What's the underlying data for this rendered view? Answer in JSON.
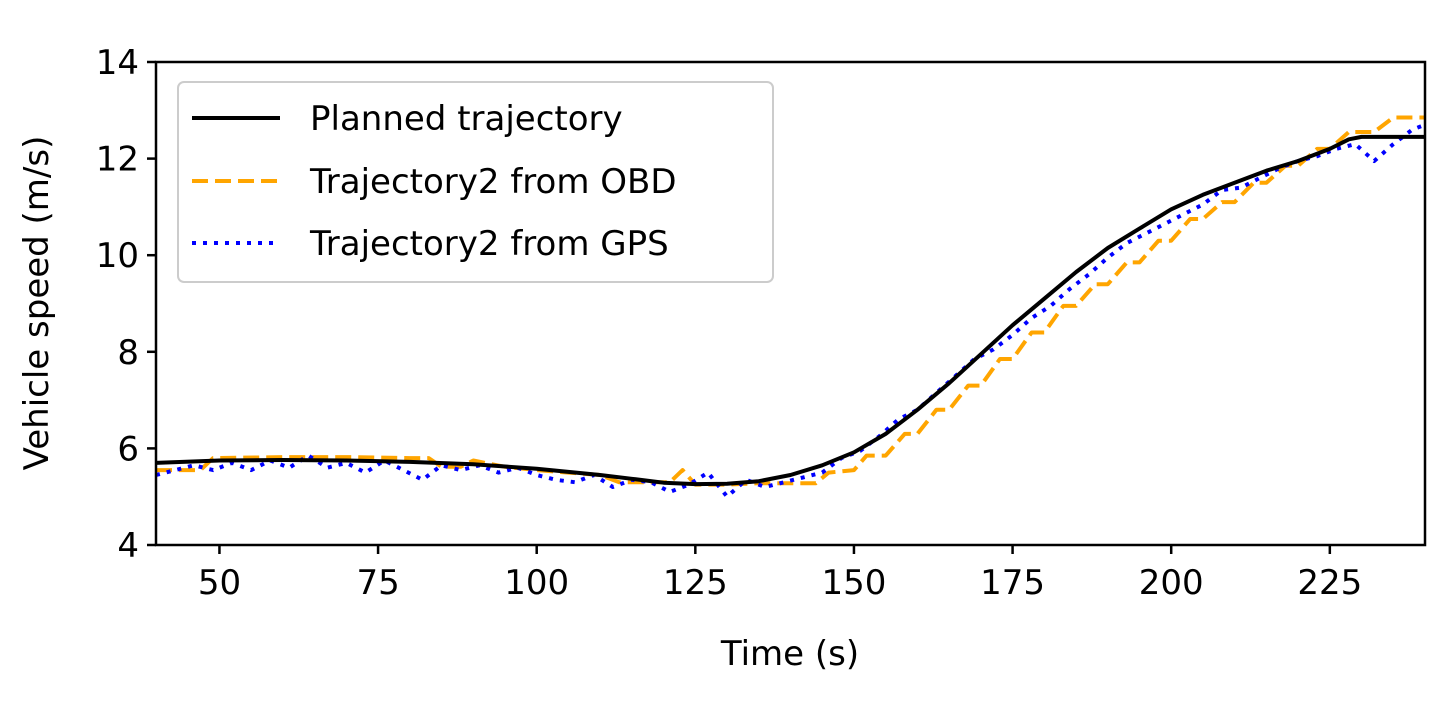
{
  "chart_data": {
    "type": "line",
    "title": "",
    "xlabel": "Time (s)",
    "ylabel": "Vehicle speed (m/s)",
    "xlim": [
      40,
      240
    ],
    "ylim": [
      4,
      14
    ],
    "xticks": [
      50,
      75,
      100,
      125,
      150,
      175,
      200,
      225
    ],
    "yticks": [
      4,
      6,
      8,
      10,
      12,
      14
    ],
    "grid": false,
    "legend_position": "top-left",
    "series": [
      {
        "name": "Planned trajectory",
        "color": "#000000",
        "style": "solid",
        "x": [
          40,
          50,
          60,
          70,
          80,
          90,
          100,
          110,
          115,
          120,
          125,
          130,
          135,
          140,
          145,
          150,
          155,
          160,
          165,
          170,
          175,
          180,
          185,
          190,
          195,
          200,
          205,
          210,
          215,
          220,
          225,
          228,
          230,
          240
        ],
        "y": [
          5.7,
          5.75,
          5.76,
          5.75,
          5.72,
          5.67,
          5.58,
          5.45,
          5.37,
          5.29,
          5.26,
          5.27,
          5.32,
          5.45,
          5.65,
          5.92,
          6.3,
          6.8,
          7.35,
          7.95,
          8.55,
          9.1,
          9.65,
          10.15,
          10.55,
          10.95,
          11.25,
          11.5,
          11.75,
          11.95,
          12.2,
          12.4,
          12.45,
          12.45
        ]
      },
      {
        "name": "Trajectory2 from OBD",
        "color": "#FFA500",
        "style": "dashed",
        "x": [
          40,
          47,
          49,
          60,
          70,
          80,
          83,
          85,
          88,
          90,
          95,
          100,
          105,
          110,
          113,
          118,
          121,
          123,
          125,
          128,
          130,
          135,
          140,
          144,
          146,
          150,
          152,
          155,
          158,
          160,
          163,
          165,
          168,
          170,
          173,
          175,
          178,
          180,
          183,
          185,
          188,
          190,
          193,
          195,
          198,
          200,
          203,
          205,
          208,
          210,
          213,
          215,
          218,
          220,
          223,
          225,
          228,
          232,
          235,
          240
        ],
        "y": [
          5.55,
          5.55,
          5.8,
          5.82,
          5.82,
          5.8,
          5.8,
          5.62,
          5.62,
          5.75,
          5.62,
          5.55,
          5.5,
          5.45,
          5.3,
          5.3,
          5.3,
          5.55,
          5.25,
          5.25,
          5.25,
          5.28,
          5.28,
          5.28,
          5.5,
          5.55,
          5.85,
          5.85,
          6.3,
          6.3,
          6.8,
          6.8,
          7.3,
          7.3,
          7.85,
          7.85,
          8.4,
          8.4,
          8.95,
          8.95,
          9.4,
          9.4,
          9.85,
          9.85,
          10.3,
          10.3,
          10.75,
          10.75,
          11.1,
          11.1,
          11.5,
          11.5,
          11.85,
          11.85,
          12.2,
          12.2,
          12.55,
          12.55,
          12.85,
          12.85
        ]
      },
      {
        "name": "Trajectory2 from GPS",
        "color": "#0000FF",
        "style": "dotted",
        "x": [
          40,
          43,
          46,
          49,
          52,
          55,
          58,
          61,
          64,
          67,
          70,
          73,
          76,
          79,
          82,
          85,
          88,
          91,
          94,
          97,
          100,
          103,
          106,
          109,
          112,
          115,
          118,
          121,
          124,
          127,
          130,
          133,
          136,
          139,
          142,
          145,
          148,
          151,
          154,
          157,
          160,
          163,
          166,
          169,
          172,
          175,
          178,
          181,
          184,
          187,
          190,
          193,
          196,
          199,
          202,
          205,
          208,
          211,
          214,
          217,
          220,
          223,
          226,
          229,
          232,
          235,
          238,
          240
        ],
        "y": [
          5.45,
          5.55,
          5.65,
          5.55,
          5.7,
          5.55,
          5.75,
          5.6,
          5.85,
          5.6,
          5.7,
          5.5,
          5.75,
          5.55,
          5.35,
          5.65,
          5.55,
          5.65,
          5.5,
          5.6,
          5.45,
          5.35,
          5.3,
          5.45,
          5.2,
          5.35,
          5.3,
          5.1,
          5.25,
          5.5,
          5.0,
          5.35,
          5.2,
          5.3,
          5.4,
          5.5,
          5.8,
          5.95,
          6.25,
          6.6,
          6.8,
          7.15,
          7.5,
          7.85,
          8.05,
          8.35,
          8.7,
          8.95,
          9.3,
          9.6,
          9.95,
          10.25,
          10.45,
          10.65,
          10.85,
          11.05,
          11.35,
          11.4,
          11.6,
          11.8,
          11.95,
          12.05,
          12.2,
          12.3,
          11.95,
          12.3,
          12.6,
          12.7
        ]
      }
    ]
  },
  "colors": {
    "axis": "#000000",
    "background": "#ffffff",
    "legend_border": "#cccccc"
  }
}
